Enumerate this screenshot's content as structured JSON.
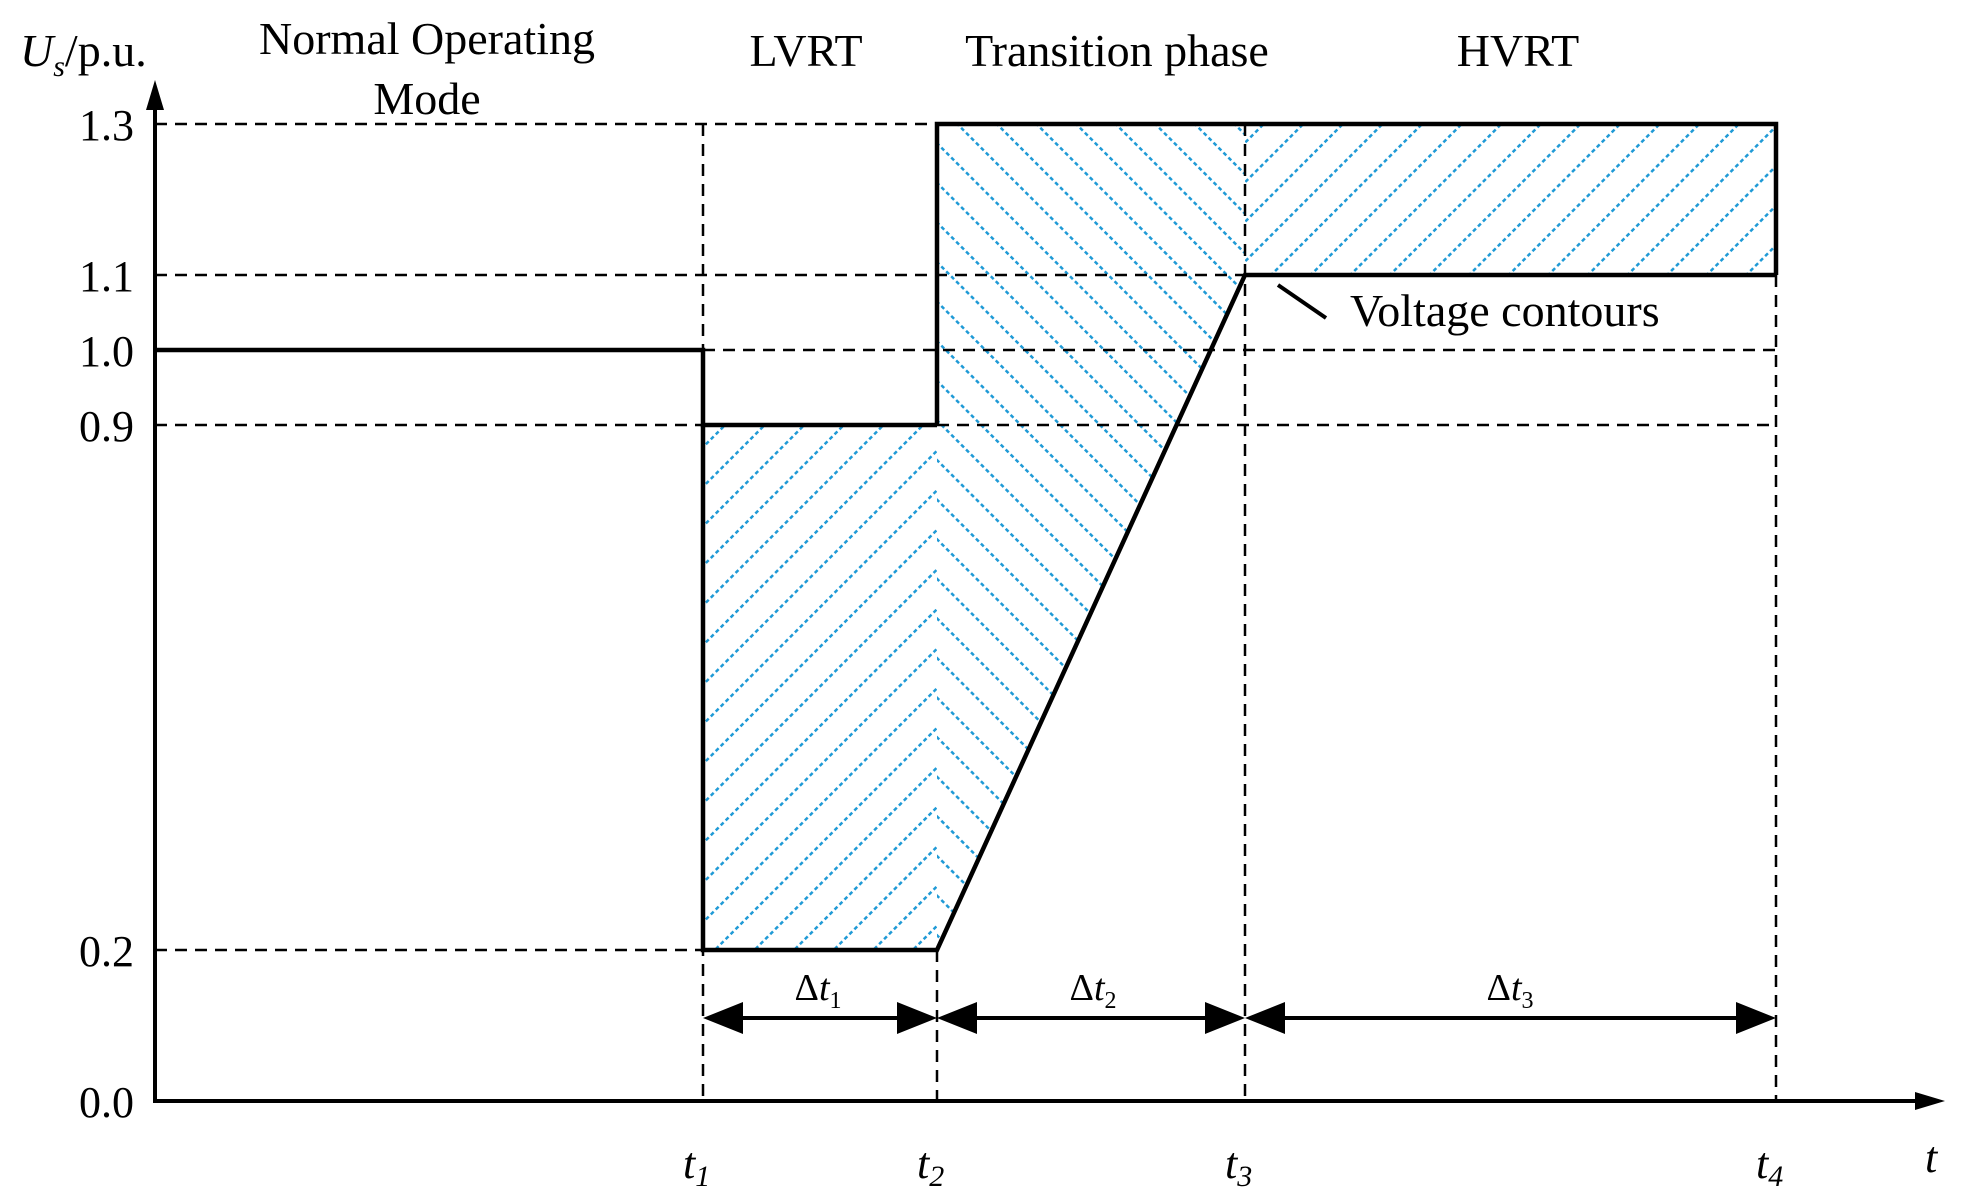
{
  "y_axis": {
    "label_symbol": "U",
    "label_subscript": "s",
    "label_unit": "/p.u.",
    "ticks": [
      "1.3",
      "1.1",
      "1.0",
      "0.9",
      "0.2",
      "0.0"
    ]
  },
  "x_axis": {
    "label": "t",
    "ticks": [
      {
        "base": "t",
        "sub": "1"
      },
      {
        "base": "t",
        "sub": "2"
      },
      {
        "base": "t",
        "sub": "3"
      },
      {
        "base": "t",
        "sub": "4"
      }
    ]
  },
  "regions": {
    "normal_line1": "Normal Operating",
    "normal_line2": "Mode",
    "lvrt": "LVRT",
    "transition": "Transition phase",
    "hvrt": "HVRT"
  },
  "intervals": [
    {
      "delta": "Δ",
      "base": "t",
      "sub": "1"
    },
    {
      "delta": "Δ",
      "base": "t",
      "sub": "2"
    },
    {
      "delta": "Δ",
      "base": "t",
      "sub": "3"
    }
  ],
  "annotation": "Voltage contours",
  "colors": {
    "hatch": "#1f9ad6",
    "line": "#000000"
  }
}
